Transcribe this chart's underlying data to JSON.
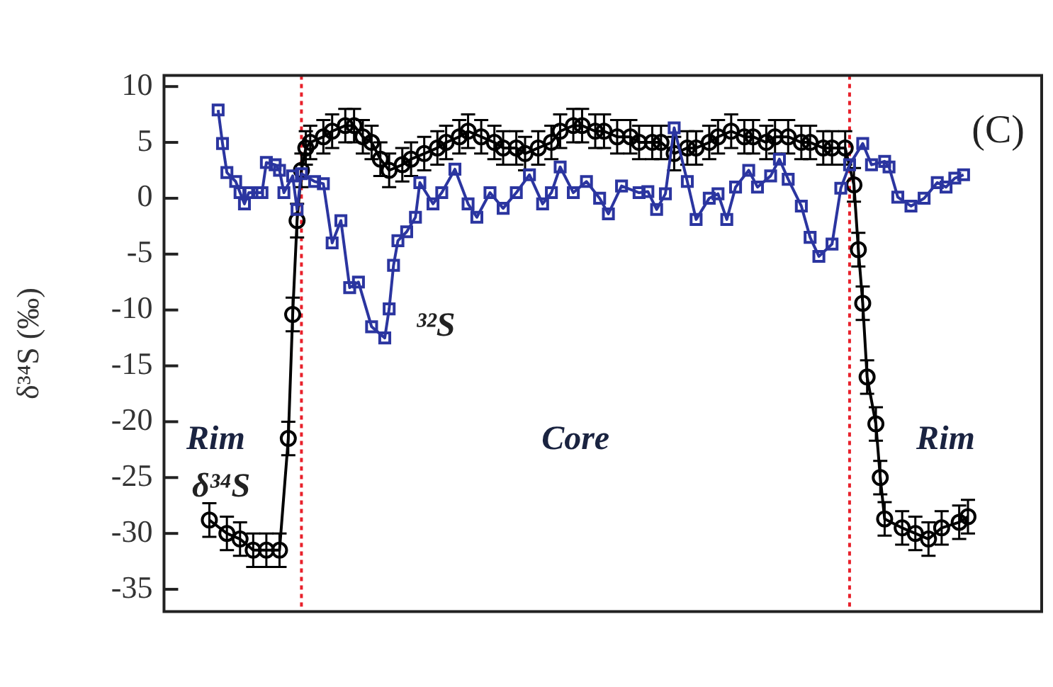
{
  "chart_data": {
    "type": "line",
    "title": "(C)",
    "ylabel": "δ³⁴S (‰)",
    "ylim": [
      -37,
      11
    ],
    "yticks": [
      -35,
      -30,
      -25,
      -20,
      -15,
      -10,
      -5,
      0,
      5,
      10
    ],
    "grid": false,
    "tick_labels": "y",
    "categories": [
      null,
      null,
      null,
      null,
      null,
      null,
      null,
      null,
      null,
      null,
      null,
      null,
      null,
      null,
      null,
      null,
      null,
      null,
      null,
      null,
      null,
      null,
      null,
      null,
      null,
      null,
      null,
      null,
      null,
      null,
      null,
      null,
      null,
      null,
      null,
      null,
      null,
      null,
      null,
      null,
      null,
      null,
      null,
      null,
      null,
      null,
      null,
      null,
      null,
      null,
      null,
      null,
      null,
      null,
      null,
      null,
      null,
      null,
      null,
      null,
      null,
      null,
      null,
      null,
      null,
      null,
      null,
      null,
      null,
      null,
      null,
      null,
      null,
      null,
      null,
      null,
      null,
      null,
      null,
      null,
      null,
      null,
      null,
      null,
      null,
      null,
      null,
      null,
      null,
      null,
      null,
      null,
      null,
      null,
      null,
      null,
      null,
      null,
      null,
      null,
      null,
      null,
      null,
      null,
      null,
      null,
      null,
      null,
      null,
      null,
      null,
      null,
      null,
      null,
      null,
      null,
      null,
      null,
      null,
      null,
      null,
      null,
      null,
      null,
      null,
      null,
      null,
      null,
      null,
      null,
      null,
      null,
      null,
      null,
      null,
      null,
      null,
      null,
      null,
      null,
      null,
      null,
      null,
      null,
      null,
      null,
      null,
      null,
      null,
      null,
      null,
      null,
      null,
      null,
      null,
      null,
      null,
      null,
      null,
      null,
      null,
      null,
      null,
      null,
      null,
      null,
      null,
      null,
      null,
      null,
      null,
      null,
      null,
      null
    ],
    "series": [
      {
        "name": "δ³⁴S",
        "color": "#000000",
        "marker": "circle",
        "values": [
          -28.8,
          null,
          null,
          null,
          -30,
          null,
          null,
          -30.5,
          null,
          null,
          -31.5,
          null,
          null,
          -31.5,
          null,
          null,
          -31.5,
          null,
          -21.5,
          -10.4,
          -2,
          2.5,
          4.5,
          5,
          null,
          null,
          5.5,
          null,
          6,
          null,
          null,
          6.5,
          null,
          6.5,
          null,
          5.5,
          null,
          5,
          null,
          3.5,
          null,
          2.5,
          null,
          null,
          3,
          null,
          3.5,
          null,
          null,
          4,
          null,
          null,
          4.5,
          null,
          5,
          null,
          null,
          5.5,
          null,
          6,
          null,
          null,
          5.5,
          null,
          null,
          5,
          null,
          4.5,
          null,
          null,
          4.5,
          null,
          4,
          null,
          null,
          4.5,
          null,
          null,
          5,
          null,
          6,
          null,
          null,
          6.5,
          null,
          6.5,
          null,
          null,
          6,
          null,
          6,
          null,
          null,
          5.5,
          null,
          null,
          5.5,
          null,
          5,
          null,
          null,
          5,
          null,
          5,
          null,
          null,
          4,
          null,
          null,
          4.5,
          null,
          4.5,
          null,
          null,
          5,
          null,
          5.5,
          null,
          null,
          6,
          null,
          null,
          5.5,
          null,
          5.5,
          null,
          null,
          5,
          null,
          5.5,
          null,
          null,
          5.5,
          null,
          null,
          5,
          null,
          5,
          null,
          null,
          4.5,
          null,
          4.5,
          null,
          null,
          4.5,
          null,
          1.2,
          -4.6,
          -9.4,
          -16,
          null,
          -20.2,
          -25,
          -28.7,
          null,
          null,
          null,
          -29.5,
          null,
          null,
          -30,
          null,
          null,
          -30.5,
          null,
          null,
          -29.5,
          null,
          null,
          null,
          -29,
          null,
          -28.5
        ],
        "errors": [
          1.5,
          null,
          null,
          null,
          1.5,
          null,
          null,
          1.5,
          null,
          null,
          1.5,
          null,
          null,
          1.5,
          null,
          null,
          1.5,
          null,
          1.5,
          1.5,
          1.5,
          1.5,
          1.5,
          1.5,
          null,
          null,
          1.5,
          null,
          1.5,
          null,
          null,
          1.5,
          null,
          1.5,
          null,
          1.5,
          null,
          1.5,
          null,
          1.5,
          null,
          1.5,
          null,
          null,
          1.5,
          null,
          1.5,
          null,
          null,
          1.5,
          null,
          null,
          1.5,
          null,
          1.5,
          null,
          null,
          1.5,
          null,
          1.5,
          null,
          null,
          1.5,
          null,
          null,
          1.5,
          null,
          1.5,
          null,
          null,
          1.5,
          null,
          1.5,
          null,
          null,
          1.5,
          null,
          null,
          1.5,
          null,
          1.5,
          null,
          null,
          1.5,
          null,
          1.5,
          null,
          null,
          1.5,
          null,
          1.5,
          null,
          null,
          1.5,
          null,
          null,
          1.5,
          null,
          1.5,
          null,
          null,
          1.5,
          null,
          1.5,
          null,
          null,
          1.5,
          null,
          null,
          1.5,
          null,
          1.5,
          null,
          null,
          1.5,
          null,
          1.5,
          null,
          null,
          1.5,
          null,
          null,
          1.5,
          null,
          1.5,
          null,
          null,
          1.5,
          null,
          1.5,
          null,
          null,
          1.5,
          null,
          null,
          1.5,
          null,
          1.5,
          null,
          null,
          1.5,
          null,
          1.5,
          null,
          null,
          1.5,
          null,
          1.5,
          1.5,
          1.5,
          1.5,
          null,
          1.5,
          1.5,
          1.5,
          null,
          null,
          null,
          1.5,
          null,
          null,
          1.5,
          null,
          null,
          1.5,
          null,
          null,
          1.5,
          null,
          null,
          null,
          1.5,
          null,
          1.5
        ]
      },
      {
        "name": "³²S",
        "color": "#2b35a0",
        "marker": "square",
        "values": [
          null,
          null,
          7.9,
          4.9,
          2.3,
          null,
          1.5,
          0.5,
          -0.5,
          0.5,
          null,
          0.5,
          0.5,
          3.2,
          null,
          3,
          2.5,
          0.5,
          null,
          2,
          -1,
          2.2,
          null,
          null,
          1.5,
          null,
          1.3,
          null,
          -4,
          null,
          -2,
          null,
          -8,
          null,
          -7.5,
          null,
          null,
          -11.5,
          null,
          null,
          -12.5,
          -9.9,
          -6,
          -3.8,
          null,
          -3,
          null,
          -1.7,
          1.4,
          null,
          null,
          -0.5,
          null,
          0.5,
          null,
          null,
          2.6,
          null,
          null,
          -0.5,
          null,
          -1.7,
          null,
          null,
          0.5,
          null,
          null,
          -0.9,
          null,
          null,
          0.5,
          null,
          null,
          2.1,
          null,
          null,
          -0.5,
          null,
          0.5,
          null,
          2.8,
          null,
          null,
          0.5,
          null,
          null,
          1.5,
          null,
          null,
          0,
          null,
          -1.4,
          null,
          null,
          1.1,
          null,
          null,
          null,
          0.5,
          null,
          0.6,
          null,
          -1,
          null,
          0.4,
          null,
          6.3,
          null,
          null,
          1.5,
          null,
          -1.9,
          null,
          null,
          0,
          null,
          0.4,
          null,
          -1.9,
          null,
          1,
          null,
          null,
          2.5,
          null,
          1,
          null,
          null,
          2,
          null,
          3.5,
          null,
          1.7,
          null,
          null,
          -0.7,
          null,
          -3.5,
          null,
          -5.2,
          null,
          null,
          -4.1,
          null,
          0.9,
          null,
          3,
          null,
          null,
          4.9,
          null,
          3,
          null,
          null,
          3.3,
          2.8,
          null,
          0.1,
          null,
          null,
          -0.7,
          null,
          null,
          0,
          null,
          null,
          1.4,
          null,
          1,
          null,
          1.8,
          null,
          2.1,
          null
        ]
      }
    ],
    "annotations": [
      "Rim",
      "Core",
      "Rim"
    ]
  }
}
